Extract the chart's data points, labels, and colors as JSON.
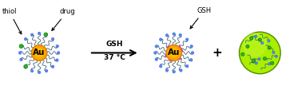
{
  "bg_color": "#ffffff",
  "au_color_outer": "#FFA500",
  "au_color_inner": "#FFB700",
  "au_label": "Au",
  "au_label_fontsize": 7.5,
  "thiol_end_color": "#5588FF",
  "thiol_end_edge": "#3366CC",
  "drug_color": "#22BB22",
  "drug_edge": "#116611",
  "gsh_pink_color": "#EE11AA",
  "chain_color": "#446677",
  "green_sphere_fill": "#AAEE00",
  "green_sphere_edge": "#558800",
  "label_thiol": "thiol",
  "label_drug": "drug",
  "label_gsh": "GSH",
  "arrow_label_line1": "GSH",
  "arrow_label_line2": "37 °C",
  "plus_sign": "+",
  "figsize": [
    3.78,
    1.22
  ],
  "dpi": 100,
  "xlim": [
    0,
    10.5
  ],
  "ylim": [
    0,
    3.3
  ]
}
